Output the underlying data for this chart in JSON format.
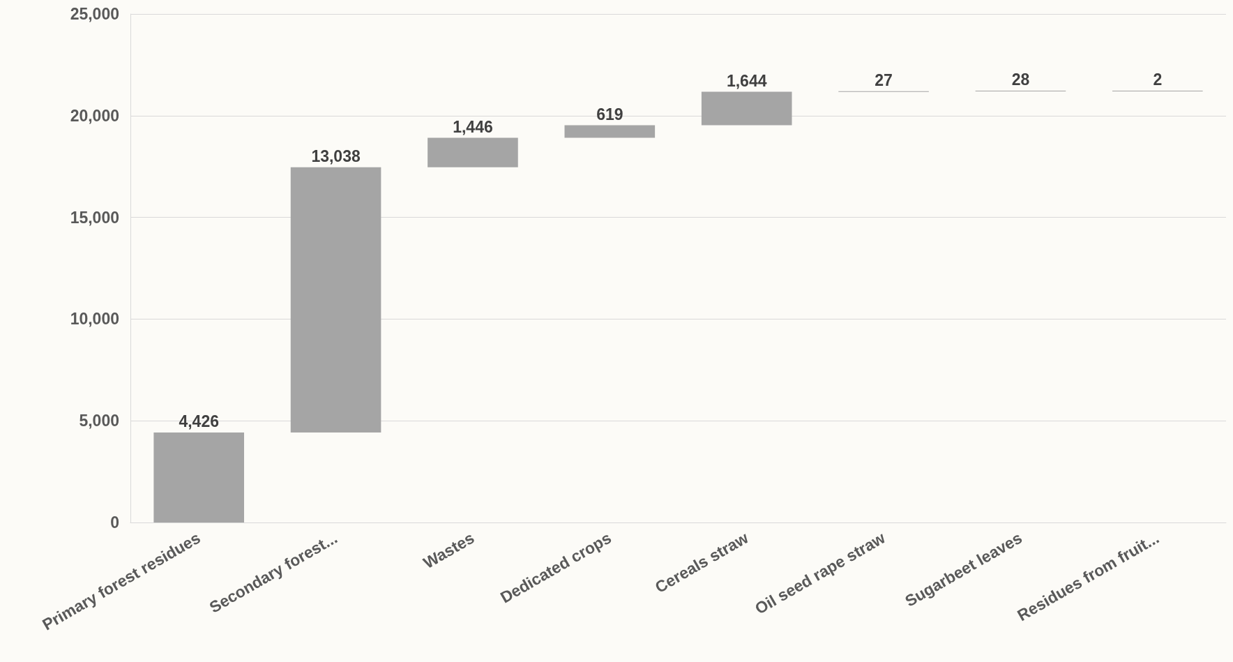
{
  "chart_data": {
    "type": "bar",
    "categories": [
      "Primary forest residues",
      "Secondary forest...",
      "Wastes",
      "Dedicated crops",
      "Cereals straw",
      "Oil seed rape straw",
      "Sugarbeet leaves",
      "Residues from fruit..."
    ],
    "values": [
      4426,
      13038,
      1446,
      619,
      1644,
      27,
      28,
      2
    ],
    "value_labels": [
      "4,426",
      "13,038",
      "1,446",
      "619",
      "1,644",
      "27",
      "28",
      "2"
    ],
    "base": [
      0,
      4426,
      17464,
      18910,
      19529,
      21173,
      21200,
      21228
    ],
    "color": "#a5a5a5",
    "ylim": [
      0,
      25000
    ],
    "yticks": [
      0,
      {
        "value": 5000,
        "label": "5,000"
      },
      {
        "value": 10000,
        "label": "10,000"
      },
      {
        "value": 15000,
        "label": "15,000"
      },
      {
        "value": 20000,
        "label": "20,000"
      },
      {
        "value": 25000,
        "label": "25,000"
      }
    ],
    "grid": "y"
  }
}
